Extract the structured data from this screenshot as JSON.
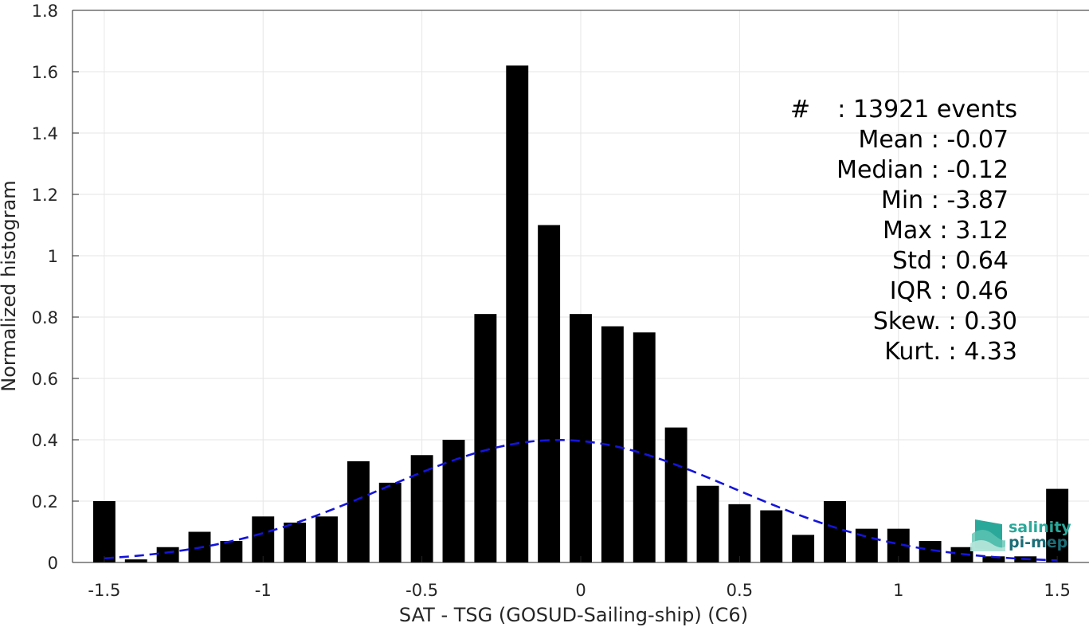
{
  "chart_data": {
    "type": "bar",
    "xlabel": "SAT - TSG (GOSUD-Sailing-ship) (C6)",
    "ylabel": "Normalized histogram",
    "xlim": [
      -1.6,
      1.6
    ],
    "ylim": [
      0,
      1.8
    ],
    "xticks": [
      -1.5,
      -1,
      -0.5,
      0,
      0.5,
      1,
      1.5
    ],
    "xtick_labels": [
      "-1.5",
      "-1",
      "-0.5",
      "0",
      "0.5",
      "1",
      "1.5"
    ],
    "yticks": [
      0,
      0.2,
      0.4,
      0.6,
      0.8,
      1,
      1.2,
      1.4,
      1.6,
      1.8
    ],
    "ytick_labels": [
      "0",
      "0.2",
      "0.4",
      "0.6",
      "0.8",
      "1",
      "1.2",
      "1.4",
      "1.6",
      "1.8"
    ],
    "grid": true,
    "bin_centers": [
      -1.5,
      -1.4,
      -1.3,
      -1.2,
      -1.1,
      -1.0,
      -0.9,
      -0.8,
      -0.7,
      -0.6,
      -0.5,
      -0.4,
      -0.3,
      -0.2,
      -0.1,
      0.0,
      0.1,
      0.2,
      0.3,
      0.4,
      0.5,
      0.6,
      0.7,
      0.8,
      0.9,
      1.0,
      1.1,
      1.2,
      1.3,
      1.4,
      1.5
    ],
    "values": [
      0.2,
      0.01,
      0.05,
      0.1,
      0.07,
      0.15,
      0.13,
      0.15,
      0.33,
      0.26,
      0.35,
      0.4,
      0.81,
      1.62,
      1.1,
      0.81,
      0.77,
      0.75,
      0.44,
      0.25,
      0.19,
      0.17,
      0.09,
      0.2,
      0.11,
      0.11,
      0.07,
      0.05,
      0.02,
      0.02,
      0.24
    ],
    "bar_color": "#000000",
    "fit": {
      "type": "gaussian",
      "mean": -0.07,
      "std": 0.55,
      "x_range": [
        -1.5,
        1.5
      ],
      "style": "dashed",
      "color": "#1414dc"
    }
  },
  "stats": [
    {
      "label": "#",
      "value": " : 13921 events"
    },
    {
      "label": "Mean",
      "value": " : -0.07"
    },
    {
      "label": "Median",
      "value": " : -0.12"
    },
    {
      "label": "Min",
      "value": " : -3.87"
    },
    {
      "label": "Max",
      "value": " : 3.12"
    },
    {
      "label": "Std",
      "value": " : 0.64"
    },
    {
      "label": "IQR",
      "value": " : 0.46"
    },
    {
      "label": "Skew.",
      "value": " : 0.30"
    },
    {
      "label": "Kurt.",
      "value": " : 4.33"
    }
  ],
  "logo": {
    "line1": "salinity",
    "line2": "pi-mep",
    "color1": "#2aa89a",
    "color2": "#1b6e78"
  }
}
